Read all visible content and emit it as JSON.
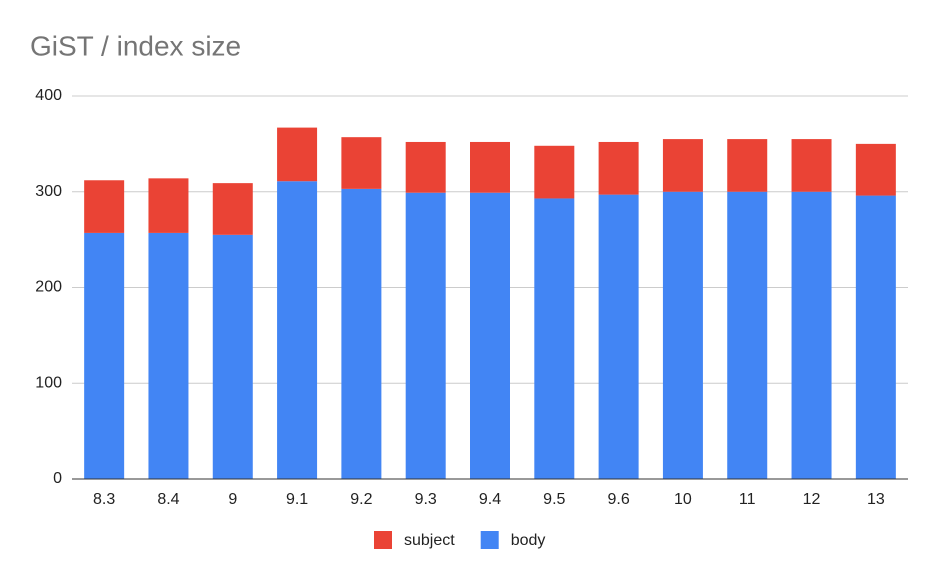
{
  "chart_data": {
    "type": "stacked-bar",
    "title": "GiST / index size",
    "categories": [
      "8.3",
      "8.4",
      "9",
      "9.1",
      "9.2",
      "9.3",
      "9.4",
      "9.5",
      "9.6",
      "10",
      "11",
      "12",
      "13"
    ],
    "series": [
      {
        "name": "subject",
        "color": "#ea4335",
        "values": [
          55,
          57,
          54,
          56,
          54,
          53,
          53,
          55,
          55,
          55,
          55,
          55,
          54
        ]
      },
      {
        "name": "body",
        "color": "#4285f4",
        "values": [
          257,
          257,
          255,
          311,
          303,
          299,
          299,
          293,
          297,
          300,
          300,
          300,
          296
        ]
      }
    ],
    "ylim": [
      0,
      400
    ],
    "yticks": [
      0,
      100,
      200,
      300,
      400
    ],
    "grid": true,
    "legend": "bottom"
  }
}
